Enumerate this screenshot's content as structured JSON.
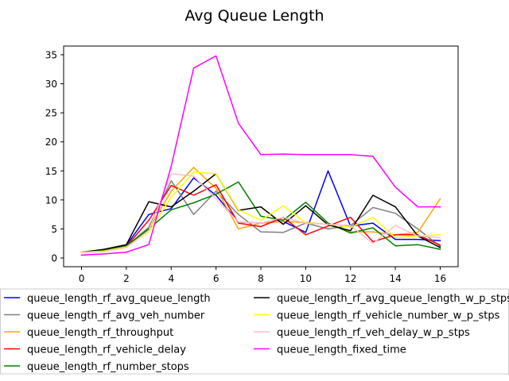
{
  "chart_data": {
    "type": "line",
    "title": "Avg Queue Length",
    "xlabel": "",
    "ylabel": "",
    "xlim": [
      -0.8,
      16.8
    ],
    "ylim": [
      -1.5,
      36.5
    ],
    "xticks": [
      0,
      2,
      4,
      6,
      8,
      10,
      12,
      14,
      16
    ],
    "yticks": [
      0,
      5,
      10,
      15,
      20,
      25,
      30,
      35
    ],
    "grid": false,
    "legend_position": "bottom",
    "x": [
      0,
      1,
      2,
      3,
      4,
      5,
      6,
      7,
      8,
      9,
      10,
      11,
      12,
      13,
      14,
      15,
      16
    ],
    "series": [
      {
        "name": "queue_length_rf_avg_queue_length",
        "color": "#0000ff",
        "values": [
          1.0,
          1.3,
          2.2,
          7.5,
          8.5,
          13.8,
          10.8,
          6.2,
          6.0,
          6.3,
          4.4,
          15.0,
          5.5,
          6.0,
          3.2,
          3.2,
          3.0
        ]
      },
      {
        "name": "queue_length_rf_avg_veh_number",
        "color": "#808080",
        "values": [
          1.0,
          1.2,
          2.0,
          5.3,
          13.3,
          7.5,
          11.5,
          7.5,
          4.5,
          4.4,
          6.0,
          5.0,
          5.6,
          8.7,
          7.7,
          5.0,
          2.0
        ]
      },
      {
        "name": "queue_length_rf_throughput",
        "color": "#ffa500",
        "values": [
          1.0,
          1.1,
          1.9,
          5.0,
          11.5,
          15.6,
          12.0,
          5.0,
          6.0,
          6.3,
          6.1,
          5.8,
          4.5,
          4.5,
          4.0,
          4.4,
          10.2
        ]
      },
      {
        "name": "queue_length_rf_vehicle_delay",
        "color": "#ff0000",
        "values": [
          1.0,
          1.2,
          2.0,
          6.5,
          12.5,
          10.8,
          12.6,
          6.0,
          5.4,
          7.0,
          4.0,
          5.5,
          7.0,
          2.8,
          4.0,
          4.0,
          2.2
        ]
      },
      {
        "name": "queue_length_rf_number_stops",
        "color": "#008000",
        "values": [
          1.0,
          1.3,
          2.1,
          5.0,
          8.3,
          9.5,
          11.0,
          13.1,
          7.2,
          6.5,
          9.6,
          6.0,
          4.3,
          5.2,
          2.1,
          2.3,
          1.5
        ]
      },
      {
        "name": "queue_length_rf_avg_queue_length_w_p_stps",
        "color": "#000000",
        "values": [
          1.0,
          1.5,
          2.3,
          9.7,
          8.8,
          11.5,
          14.5,
          8.2,
          8.8,
          5.8,
          9.0,
          5.7,
          4.7,
          10.8,
          8.8,
          3.8,
          1.8
        ]
      },
      {
        "name": "queue_length_rf_vehicle_number_w_p_stps",
        "color": "#ffff00",
        "values": [
          1.0,
          1.2,
          1.9,
          4.5,
          10.5,
          14.8,
          14.5,
          8.3,
          6.5,
          9.0,
          6.0,
          5.8,
          5.3,
          7.0,
          3.5,
          3.8,
          4.0
        ]
      },
      {
        "name": "queue_length_rf_veh_delay_w_p_stps",
        "color": "#ffc0cb",
        "values": [
          0.9,
          1.1,
          1.8,
          4.7,
          14.5,
          14.1,
          10.2,
          6.2,
          6.0,
          7.0,
          6.0,
          5.8,
          5.6,
          2.5,
          5.6,
          3.8,
          3.5
        ]
      },
      {
        "name": "queue_length_fixed_time",
        "color": "#ff00ff",
        "values": [
          0.5,
          0.7,
          1.0,
          2.3,
          15.8,
          32.7,
          34.8,
          23.2,
          17.8,
          17.9,
          17.8,
          17.8,
          17.8,
          17.5,
          12.2,
          8.8,
          8.8
        ]
      }
    ]
  }
}
